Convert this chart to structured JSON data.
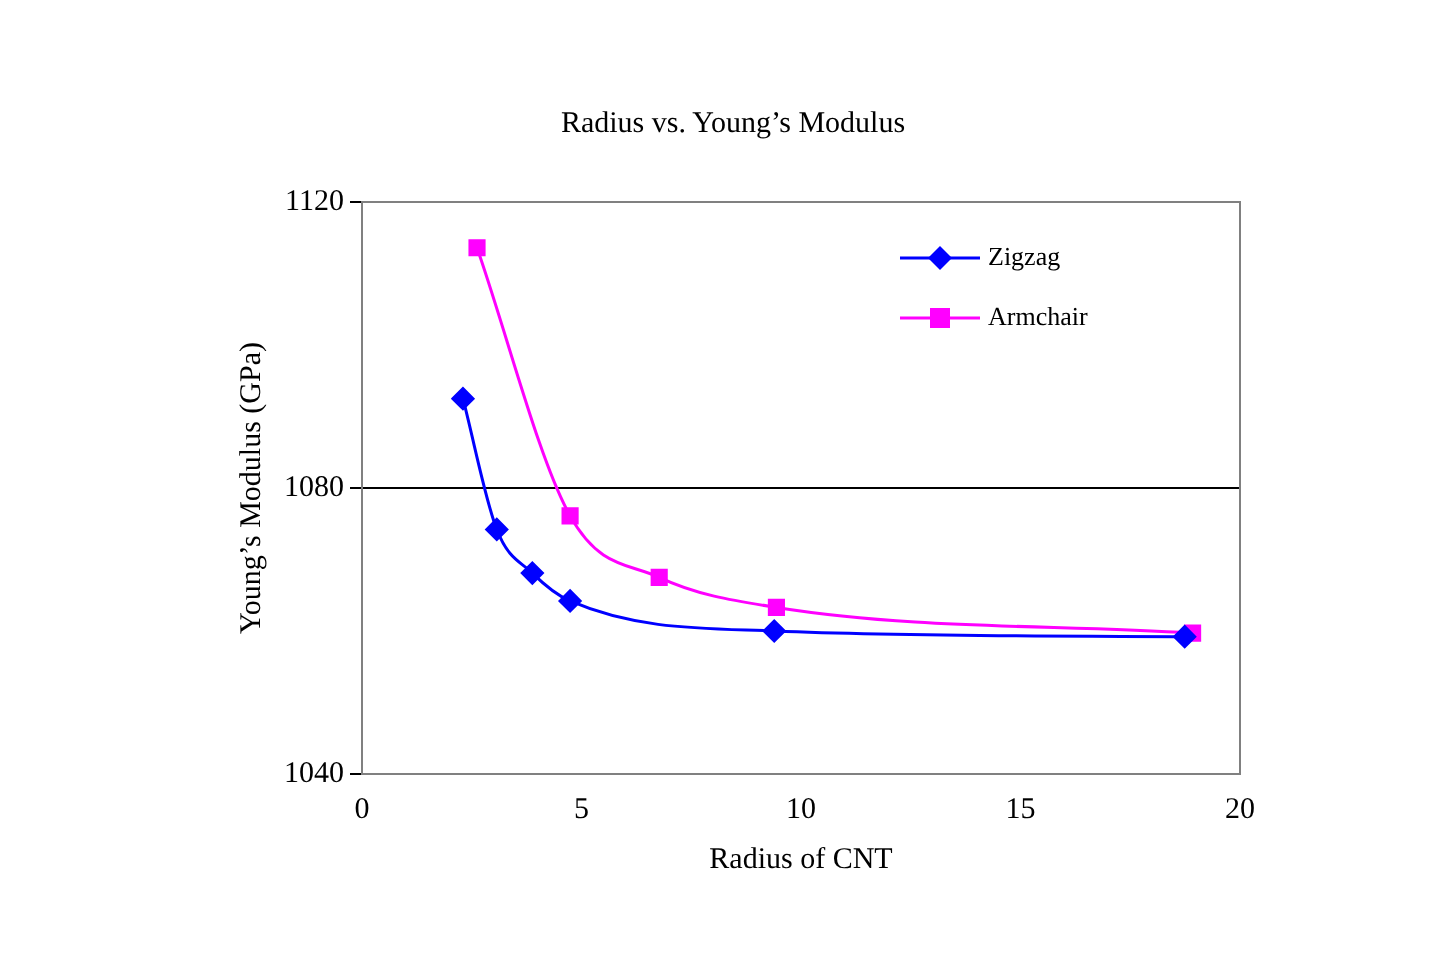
{
  "chart_data": {
    "type": "line",
    "title": "Radius vs. Young’s Modulus",
    "xlabel": "Radius of CNT",
    "ylabel": "Young’s Modulus (GPa)",
    "xlim": [
      0,
      20
    ],
    "xticks": [
      0,
      5,
      10,
      15,
      20
    ],
    "ylim": [
      1040,
      1120
    ],
    "yticks": [
      1040,
      1080,
      1120
    ],
    "grid": "y",
    "legend": "top right",
    "series": [
      {
        "name": "Zigzag",
        "color": "#0000ff",
        "marker": "diamond",
        "x": [
          2.3,
          3.07,
          3.88,
          4.74,
          9.39,
          18.74
        ],
        "values": [
          1092.5,
          1074.2,
          1068.1,
          1064.2,
          1060.0,
          1059.2
        ]
      },
      {
        "name": "Armchair",
        "color": "#ff00ff",
        "marker": "square",
        "x": [
          2.62,
          4.74,
          6.77,
          9.44,
          18.92
        ],
        "values": [
          1113.6,
          1076.1,
          1067.5,
          1063.3,
          1059.7
        ]
      }
    ]
  }
}
